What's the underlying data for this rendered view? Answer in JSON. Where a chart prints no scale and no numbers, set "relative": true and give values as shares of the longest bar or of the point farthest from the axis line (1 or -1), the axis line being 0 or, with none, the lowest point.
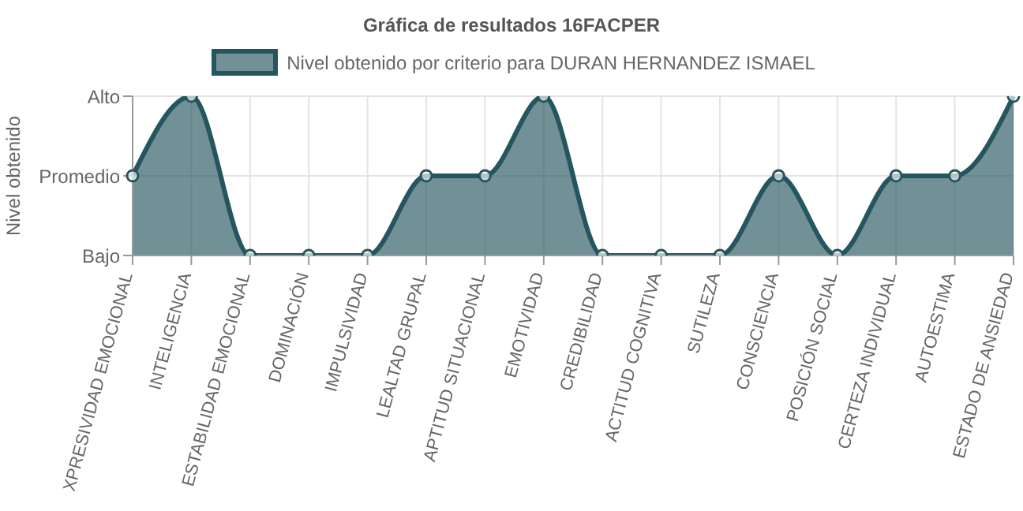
{
  "chart_data": {
    "type": "area",
    "title": "Gráfica de resultados 16FACPER",
    "ylabel": "Nivel obtenido",
    "categories": [
      "XPRESIVIDAD EMOCIONAL",
      "INTELIGENCIA",
      "ESTABILIDAD EMOCIONAL",
      "DOMINACIÓN",
      "IMPULSIVIDAD",
      "LEALTAD GRUPAL",
      "APTITUD SITUACIONAL",
      "EMOTIVIDAD",
      "CREDIBILIDAD",
      "ACTITUD COGNITIVA",
      "SUTILEZA",
      "CONSCIENCIA",
      "POSICIÓN SOCIAL",
      "CERTEZA INDIVIDUAL",
      "AUTOESTIMA",
      "ESTADO DE ANSIEDAD"
    ],
    "y_categories": [
      "Alto",
      "Promedio",
      "Bajo"
    ],
    "relative": true,
    "series": [
      {
        "name": "Nivel obtenido por criterio para DURAN HERNANDEZ ISMAEL",
        "color": "#25565f",
        "values": [
          0.5,
          1,
          0,
          0,
          0,
          0.5,
          0.5,
          1,
          0,
          0,
          0,
          0.5,
          0,
          0.5,
          0.5,
          1
        ]
      }
    ],
    "grid": true,
    "legend": "top",
    "marker": "circle"
  }
}
